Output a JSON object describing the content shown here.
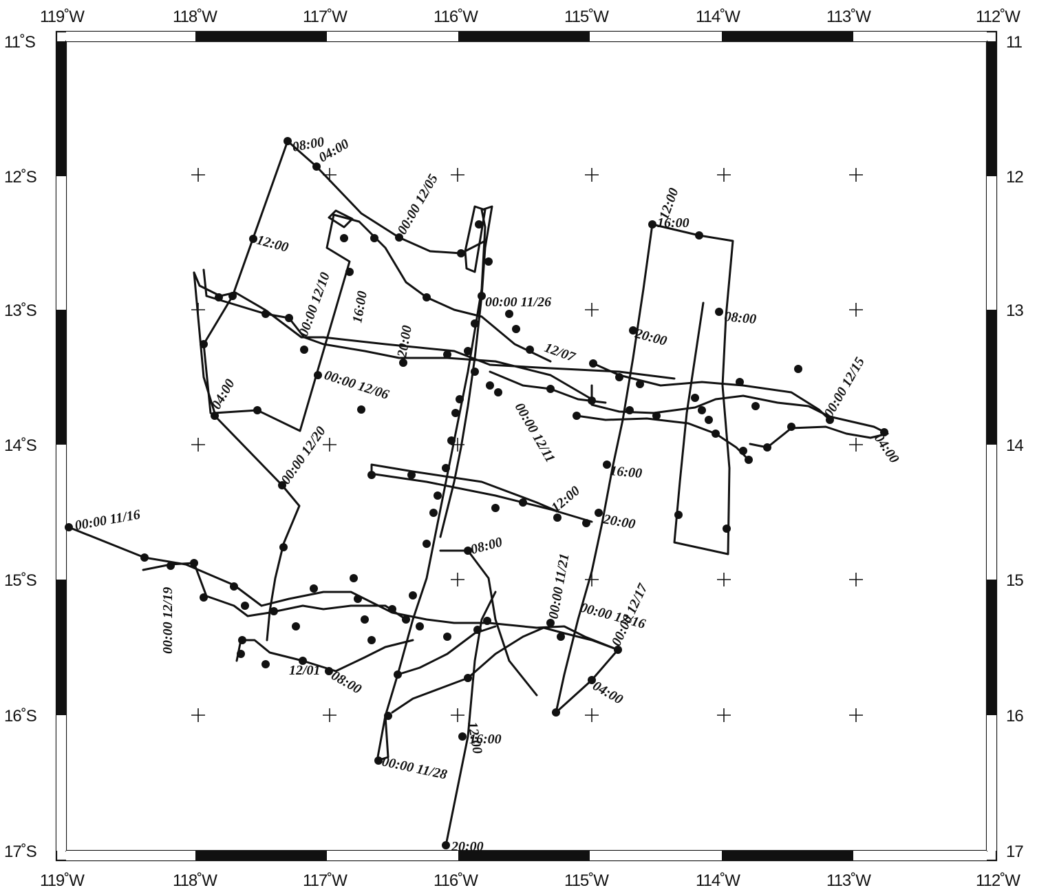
{
  "map": {
    "lon_ticks": [
      "119˚W",
      "118˚W",
      "117˚W",
      "116˚W",
      "115˚W",
      "114˚W",
      "113˚W",
      "112˚W"
    ],
    "lat_ticks_left": [
      "11˚S",
      "12˚S",
      "13˚S",
      "14˚S",
      "15˚S",
      "16˚S",
      "17˚S"
    ],
    "lat_ticks_right": [
      "11",
      "12",
      "13",
      "14",
      "15",
      "16",
      "17"
    ],
    "extent": {
      "lon_min": -119,
      "lon_max": -112,
      "lat_min": -17,
      "lat_max": -11
    },
    "line_color": "#111111",
    "background_color": "#ffffff",
    "track_labels": [
      "00:00 11/16",
      "00:00 12/05",
      "00:00 11/26",
      "12/07",
      "00:00 12/15",
      "00:00 12/06",
      "00:00 12/20",
      "00:00 11/21",
      "00:00 11/28",
      "00:00 12/17",
      "00:00 12/16",
      "00:00 12/19",
      "00:00 12/10",
      "00:00 12/11",
      "12/01",
      "08:00",
      "04:00",
      "12:00",
      "16:00",
      "20:00",
      "12:00",
      "16:00",
      "20:00",
      "08:00",
      "04:00",
      "12:00",
      "16:00",
      "20:00",
      "08:00",
      "04:00",
      "12:00",
      "16:00",
      "20:00",
      "08:00",
      "04:00"
    ]
  }
}
